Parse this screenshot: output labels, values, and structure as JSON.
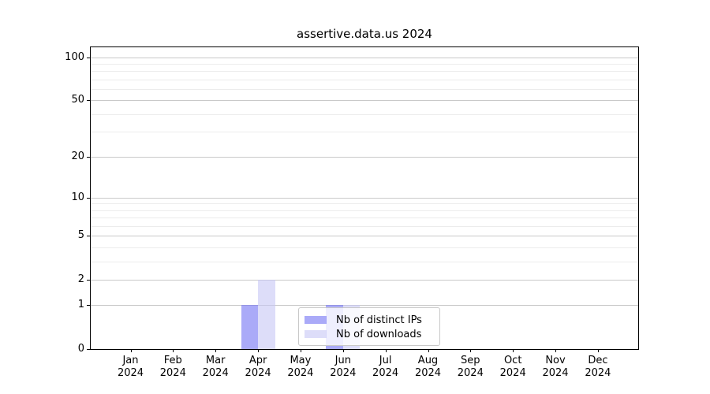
{
  "title": "assertive.data.us 2024",
  "chart_data": {
    "type": "bar",
    "title": "assertive.data.us 2024",
    "x_months": [
      "Jan",
      "Feb",
      "Mar",
      "Apr",
      "May",
      "Jun",
      "Jul",
      "Aug",
      "Sep",
      "Oct",
      "Nov",
      "Dec"
    ],
    "x_year": "2024",
    "categories": [
      "Jan 2024",
      "Feb 2024",
      "Mar 2024",
      "Apr 2024",
      "May 2024",
      "Jun 2024",
      "Jul 2024",
      "Aug 2024",
      "Sep 2024",
      "Oct 2024",
      "Nov 2024",
      "Dec 2024"
    ],
    "series": [
      {
        "name": "Nb of distinct IPs",
        "color": "rgba(118, 118, 244, 0.62)",
        "values": [
          0,
          0,
          0,
          1,
          0,
          1,
          0,
          0,
          0,
          0,
          0,
          0
        ]
      },
      {
        "name": "Nb of downloads",
        "color": "rgba(198, 198, 245, 0.60)",
        "values": [
          0,
          0,
          0,
          2,
          0,
          1,
          0,
          0,
          0,
          0,
          0,
          0
        ]
      }
    ],
    "yticks": [
      0,
      1,
      2,
      5,
      10,
      20,
      50,
      100
    ],
    "minor_gridlines": [
      3,
      4,
      6,
      7,
      8,
      9,
      30,
      40,
      60,
      70,
      80,
      90
    ],
    "scale": "log1p",
    "ylim": [
      0,
      117
    ],
    "xlabel": "",
    "ylabel": "",
    "grid": true,
    "legend_position": "lower-center-inside"
  },
  "colors": {
    "background": "#ffffff",
    "spine": "#000000",
    "major_grid": "#c9c9c9",
    "minor_grid": "#ececec",
    "bar_distinct_ips": "rgba(118, 118, 244, 0.62)",
    "bar_downloads": "rgba(198, 198, 245, 0.60)"
  }
}
